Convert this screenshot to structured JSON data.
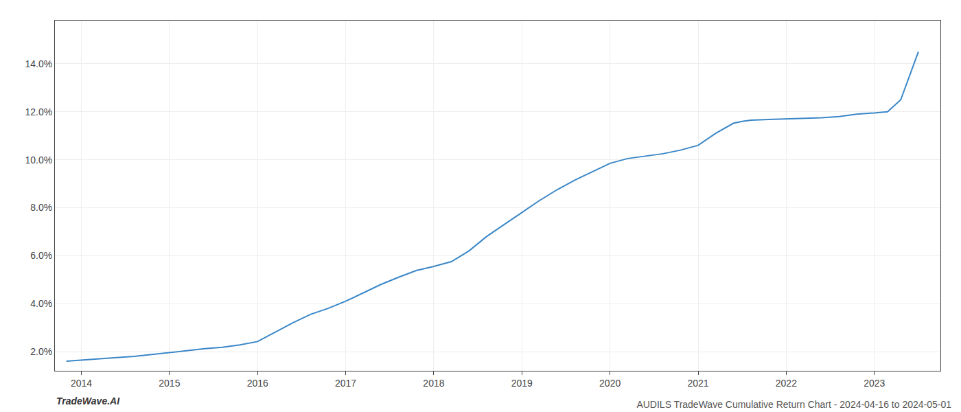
{
  "chart_data": {
    "type": "line",
    "title": "AUDILS TradeWave Cumulative Return Chart - 2024-04-16 to 2024-05-01",
    "annotations": [
      "TradeWave.AI"
    ],
    "color": "#3a87c8",
    "grid": true,
    "x": [
      2013.83,
      2014.0,
      2014.2,
      2014.4,
      2014.6,
      2014.8,
      2015.0,
      2015.2,
      2015.4,
      2015.6,
      2015.8,
      2016.0,
      2016.2,
      2016.4,
      2016.6,
      2016.8,
      2017.0,
      2017.2,
      2017.4,
      2017.6,
      2017.8,
      2018.0,
      2018.1,
      2018.2,
      2018.4,
      2018.6,
      2018.8,
      2019.0,
      2019.2,
      2019.4,
      2019.6,
      2019.8,
      2020.0,
      2020.2,
      2020.4,
      2020.6,
      2020.8,
      2021.0,
      2021.2,
      2021.4,
      2021.5,
      2021.6,
      2021.8,
      2022.0,
      2022.2,
      2022.4,
      2022.6,
      2022.8,
      2023.0,
      2023.15,
      2023.3,
      2023.5
    ],
    "values": [
      1.6,
      1.65,
      1.7,
      1.75,
      1.8,
      1.88,
      1.97,
      2.05,
      2.12,
      2.18,
      2.28,
      2.42,
      2.8,
      3.2,
      3.55,
      3.8,
      4.1,
      4.45,
      4.8,
      5.1,
      5.38,
      5.55,
      5.65,
      5.75,
      6.2,
      6.8,
      7.3,
      7.8,
      8.3,
      8.75,
      9.15,
      9.5,
      9.85,
      10.05,
      10.15,
      10.25,
      10.4,
      10.6,
      11.1,
      11.52,
      11.6,
      11.65,
      11.68,
      11.7,
      11.72,
      11.75,
      11.8,
      11.9,
      11.95,
      12.0,
      12.5,
      14.5
    ],
    "xlim": [
      2013.7,
      2023.75
    ],
    "ylim": [
      1.2,
      15.8
    ],
    "xticks": [
      2014,
      2015,
      2016,
      2017,
      2018,
      2019,
      2020,
      2021,
      2022,
      2023
    ],
    "yticks": [
      {
        "value": 2.0,
        "label": "2.0%"
      },
      {
        "value": 4.0,
        "label": "4.0%"
      },
      {
        "value": 6.0,
        "label": "6.0%"
      },
      {
        "value": 8.0,
        "label": "8.0%"
      },
      {
        "value": 10.0,
        "label": "10.0%"
      },
      {
        "value": 12.0,
        "label": "12.0%"
      },
      {
        "value": 14.0,
        "label": "14.0%"
      }
    ]
  }
}
